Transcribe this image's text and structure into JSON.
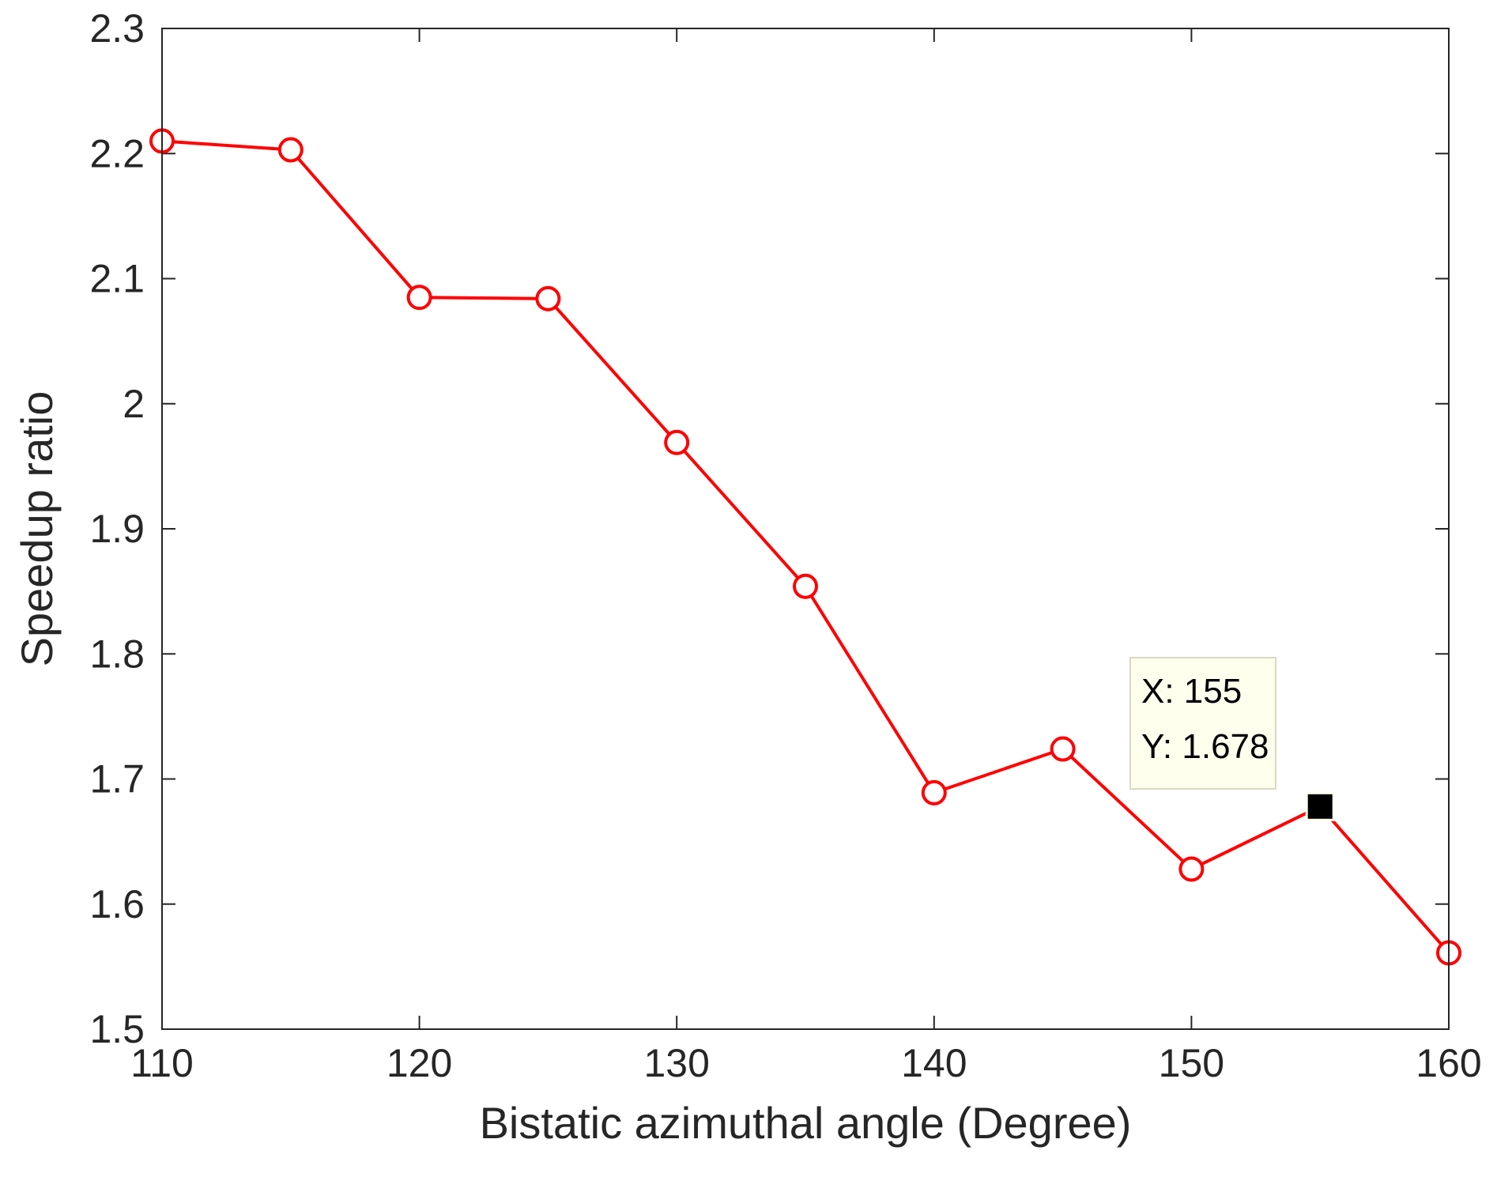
{
  "chart_data": {
    "type": "line",
    "xlabel": "Bistatic azimuthal angle (Degree)",
    "ylabel": "Speedup ratio",
    "xlim": [
      110,
      160
    ],
    "ylim": [
      1.5,
      2.3
    ],
    "xticks": [
      110,
      120,
      130,
      140,
      150,
      160
    ],
    "xtick_labels": [
      "110",
      "120",
      "130",
      "140",
      "150",
      "160"
    ],
    "yticks": [
      1.5,
      1.6,
      1.7,
      1.8,
      1.9,
      2.0,
      2.1,
      2.2,
      2.3
    ],
    "ytick_labels": [
      "1.5",
      "1.6",
      "1.7",
      "1.8",
      "1.9",
      "2",
      "2.1",
      "2.2",
      "2.3"
    ],
    "grid": false,
    "box": true,
    "series": [
      {
        "color": "#ff0000",
        "marker": "circle-open",
        "x": [
          110,
          115,
          120,
          125,
          130,
          135,
          140,
          145,
          150,
          155,
          160
        ],
        "y": [
          2.21,
          2.203,
          2.085,
          2.084,
          1.969,
          1.854,
          1.689,
          1.724,
          1.628,
          1.678,
          1.561
        ]
      }
    ],
    "datatip": {
      "x": 155,
      "y": 1.678,
      "x_text": "X: 155",
      "y_text": "Y: 1.678",
      "marker_color": "#000000",
      "background": "#ffffee",
      "border": "#d9d9c3"
    },
    "axis_color": "#262626"
  }
}
